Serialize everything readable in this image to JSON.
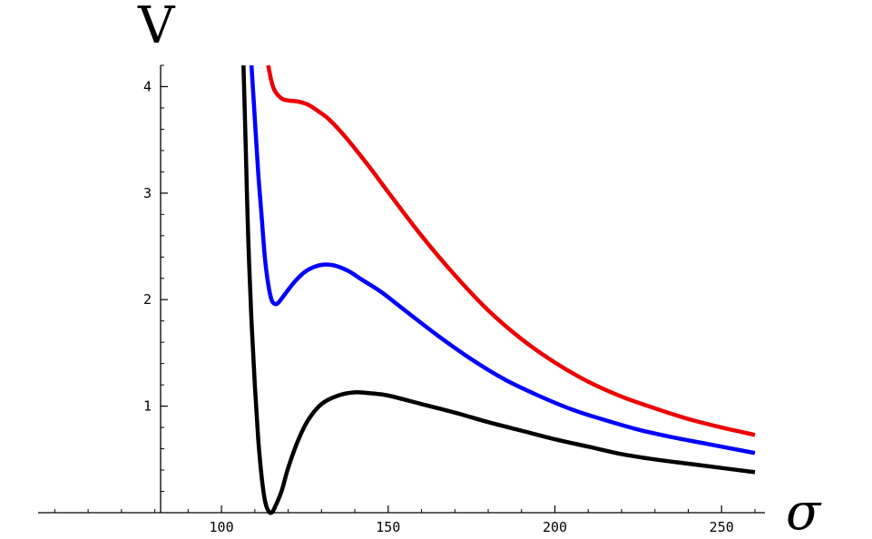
{
  "chart_data": {
    "type": "line",
    "xlabel": "σ",
    "ylabel": "V",
    "xlim": [
      45,
      263
    ],
    "ylim": [
      0,
      4.2
    ],
    "x_ticks": [
      100,
      150,
      200,
      250
    ],
    "y_ticks": [
      1,
      2,
      3,
      4
    ],
    "x_minor_step": 10,
    "y_minor_step": 0.2,
    "grid": false,
    "legend": "none",
    "series": [
      {
        "color": "#000000",
        "points": [
          [
            106.6,
            4.2
          ],
          [
            107.3,
            3.4
          ],
          [
            108,
            2.6
          ],
          [
            109,
            1.8
          ],
          [
            110,
            1.2
          ],
          [
            111,
            0.7
          ],
          [
            112,
            0.35
          ],
          [
            113,
            0.12
          ],
          [
            114,
            0.02
          ],
          [
            115,
            0.0
          ],
          [
            116,
            0.05
          ],
          [
            118,
            0.2
          ],
          [
            120,
            0.42
          ],
          [
            123,
            0.68
          ],
          [
            126,
            0.87
          ],
          [
            130,
            1.02
          ],
          [
            135,
            1.1
          ],
          [
            140,
            1.13
          ],
          [
            145,
            1.12
          ],
          [
            150,
            1.1
          ],
          [
            160,
            1.02
          ],
          [
            170,
            0.94
          ],
          [
            180,
            0.85
          ],
          [
            190,
            0.77
          ],
          [
            200,
            0.69
          ],
          [
            210,
            0.62
          ],
          [
            220,
            0.55
          ],
          [
            230,
            0.5
          ],
          [
            240,
            0.46
          ],
          [
            250,
            0.42
          ],
          [
            260,
            0.38
          ]
        ]
      },
      {
        "color": "#0000ff",
        "points": [
          [
            109,
            4.2
          ],
          [
            110,
            3.7
          ],
          [
            111,
            3.2
          ],
          [
            112,
            2.8
          ],
          [
            113,
            2.4
          ],
          [
            114,
            2.15
          ],
          [
            115,
            2.0
          ],
          [
            116,
            1.96
          ],
          [
            117,
            1.97
          ],
          [
            119,
            2.05
          ],
          [
            122,
            2.17
          ],
          [
            125,
            2.26
          ],
          [
            128,
            2.31
          ],
          [
            131,
            2.33
          ],
          [
            134,
            2.32
          ],
          [
            138,
            2.27
          ],
          [
            142,
            2.19
          ],
          [
            148,
            2.07
          ],
          [
            155,
            1.9
          ],
          [
            165,
            1.66
          ],
          [
            175,
            1.44
          ],
          [
            185,
            1.25
          ],
          [
            195,
            1.1
          ],
          [
            205,
            0.97
          ],
          [
            215,
            0.87
          ],
          [
            225,
            0.78
          ],
          [
            235,
            0.71
          ],
          [
            245,
            0.65
          ],
          [
            255,
            0.59
          ],
          [
            260,
            0.56
          ]
        ]
      },
      {
        "color": "#ee0000",
        "points": [
          [
            114,
            4.2
          ],
          [
            115,
            4.05
          ],
          [
            116,
            3.96
          ],
          [
            118,
            3.89
          ],
          [
            120,
            3.87
          ],
          [
            123,
            3.86
          ],
          [
            126,
            3.83
          ],
          [
            129,
            3.77
          ],
          [
            132,
            3.7
          ],
          [
            136,
            3.57
          ],
          [
            140,
            3.42
          ],
          [
            145,
            3.22
          ],
          [
            150,
            3.01
          ],
          [
            160,
            2.6
          ],
          [
            170,
            2.23
          ],
          [
            180,
            1.9
          ],
          [
            190,
            1.63
          ],
          [
            200,
            1.41
          ],
          [
            210,
            1.23
          ],
          [
            220,
            1.09
          ],
          [
            230,
            0.98
          ],
          [
            240,
            0.88
          ],
          [
            250,
            0.8
          ],
          [
            260,
            0.73
          ]
        ]
      }
    ]
  }
}
